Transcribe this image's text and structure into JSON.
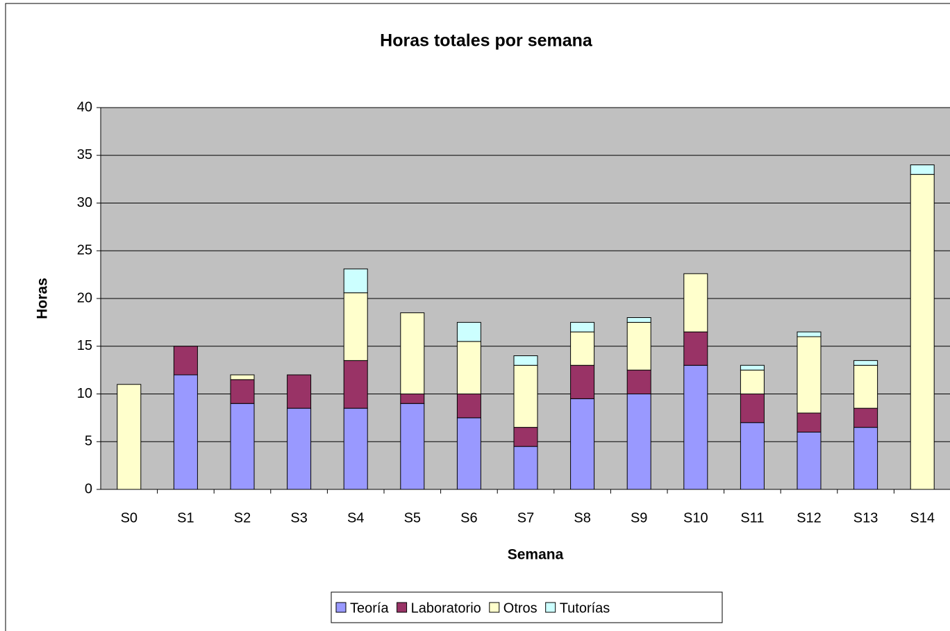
{
  "chart_data": {
    "type": "stacked_bar",
    "title": "Horas totales por semana",
    "xlabel": "Semana",
    "ylabel": "Horas",
    "categories": [
      "S0",
      "S1",
      "S2",
      "S3",
      "S4",
      "S5",
      "S6",
      "S7",
      "S8",
      "S9",
      "S10",
      "S11",
      "S12",
      "S13",
      "S14"
    ],
    "series": [
      {
        "name": "Teoría",
        "color": "#9999ff",
        "values": [
          0,
          12,
          9,
          8.5,
          8.5,
          9,
          7.5,
          4.5,
          9.5,
          10,
          13,
          7,
          6,
          6.5,
          0
        ]
      },
      {
        "name": "Laboratorio",
        "color": "#993366",
        "values": [
          0,
          3,
          2.5,
          3.5,
          5,
          1,
          2.5,
          2,
          3.5,
          2.5,
          3.5,
          3,
          2,
          2,
          0
        ]
      },
      {
        "name": "Otros",
        "color": "#ffffcc",
        "values": [
          11,
          0,
          0.5,
          0,
          7.1,
          8.5,
          5.5,
          6.5,
          3.5,
          5,
          6.1,
          2.5,
          8,
          4.5,
          33
        ]
      },
      {
        "name": "Tutorías",
        "color": "#ccffff",
        "values": [
          0,
          0,
          0,
          0,
          2.5,
          0,
          2,
          1,
          1,
          0.5,
          0,
          0.5,
          0.5,
          0.5,
          1
        ]
      }
    ],
    "ylim": [
      0,
      40
    ],
    "yticks": [
      0,
      5,
      10,
      15,
      20,
      25,
      30,
      35,
      40
    ],
    "grid": true,
    "legend": "bottom",
    "plot_background": "#c0c0c0"
  }
}
